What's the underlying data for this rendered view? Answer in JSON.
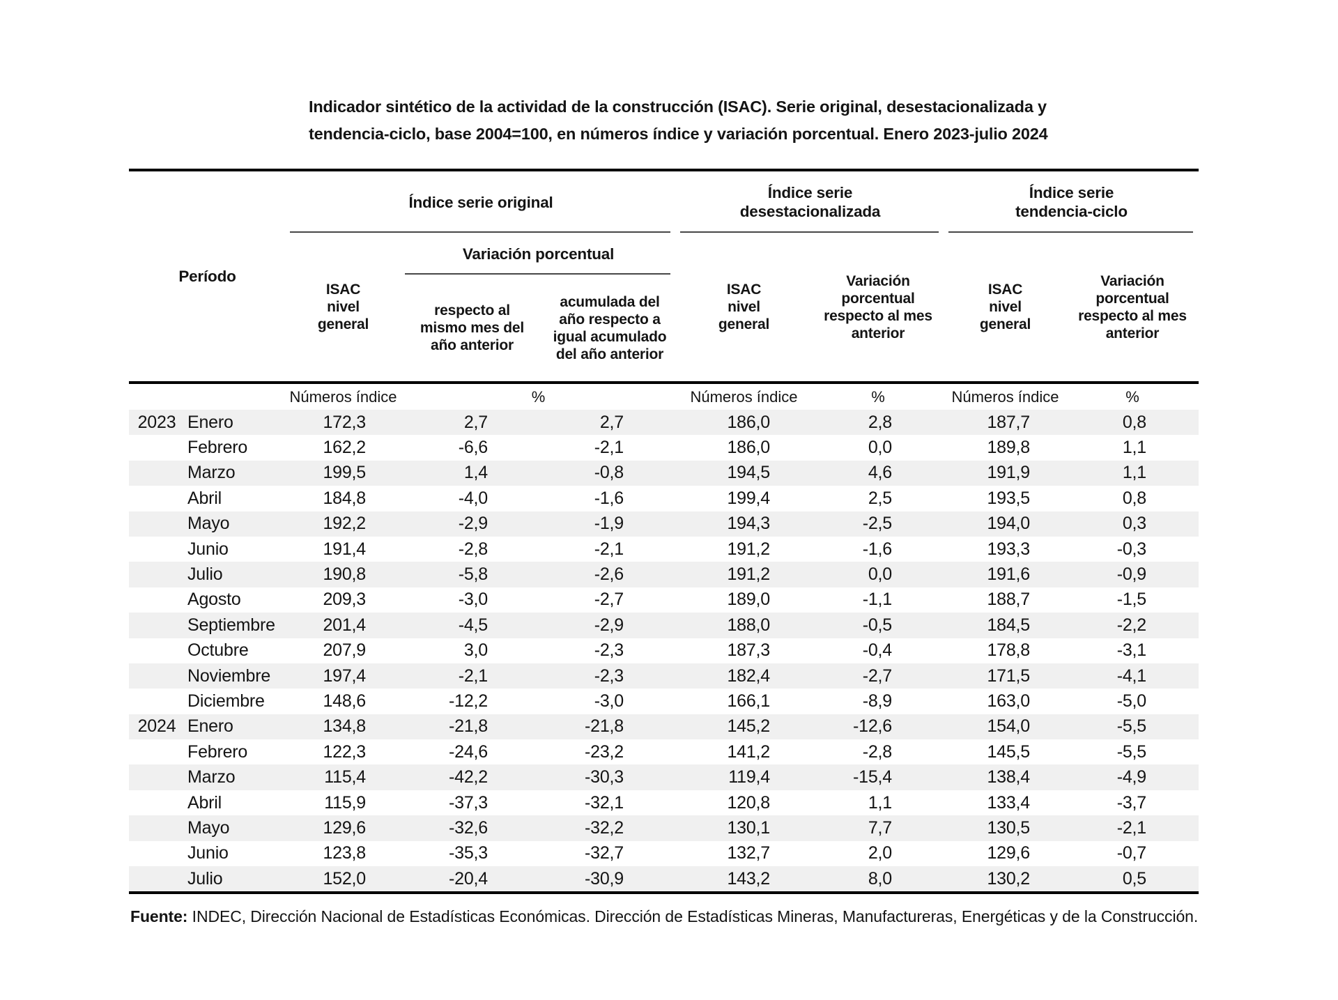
{
  "title": {
    "line1": "Indicador sintético de la actividad de la construcción (ISAC). Serie original, desestacionalizada y",
    "line2": "tendencia-ciclo, base 2004=100, en números índice y variación porcentual. Enero 2023-julio 2024"
  },
  "table": {
    "header": {
      "period": "Período",
      "group_original": "Índice serie original",
      "group_desest": "Índice serie\ndesestacionalizada",
      "group_tend": "Índice serie\ntendencia-ciclo",
      "variacion_porcentual": "Variación porcentual",
      "isac_nivel_general": "ISAC\nnivel\ngeneral",
      "respecto_mismo_mes": "respecto al\nmismo mes del\naño anterior",
      "acumulada": "acumulada del\naño respecto a\nigual acumulado\ndel año anterior",
      "variacion_mes_anterior": "Variación\nporcentual\nrespecto al mes\nanterior"
    },
    "units": {
      "index": "Números índice",
      "pct": "%"
    },
    "rows": [
      {
        "year": "2023",
        "month": "Enero",
        "values": [
          "172,3",
          "2,7",
          "2,7",
          "186,0",
          "2,8",
          "187,7",
          "0,8"
        ]
      },
      {
        "year": "",
        "month": "Febrero",
        "values": [
          "162,2",
          "-6,6",
          "-2,1",
          "186,0",
          "0,0",
          "189,8",
          "1,1"
        ]
      },
      {
        "year": "",
        "month": "Marzo",
        "values": [
          "199,5",
          "1,4",
          "-0,8",
          "194,5",
          "4,6",
          "191,9",
          "1,1"
        ]
      },
      {
        "year": "",
        "month": "Abril",
        "values": [
          "184,8",
          "-4,0",
          "-1,6",
          "199,4",
          "2,5",
          "193,5",
          "0,8"
        ]
      },
      {
        "year": "",
        "month": "Mayo",
        "values": [
          "192,2",
          "-2,9",
          "-1,9",
          "194,3",
          "-2,5",
          "194,0",
          "0,3"
        ]
      },
      {
        "year": "",
        "month": "Junio",
        "values": [
          "191,4",
          "-2,8",
          "-2,1",
          "191,2",
          "-1,6",
          "193,3",
          "-0,3"
        ]
      },
      {
        "year": "",
        "month": "Julio",
        "values": [
          "190,8",
          "-5,8",
          "-2,6",
          "191,2",
          "0,0",
          "191,6",
          "-0,9"
        ]
      },
      {
        "year": "",
        "month": "Agosto",
        "values": [
          "209,3",
          "-3,0",
          "-2,7",
          "189,0",
          "-1,1",
          "188,7",
          "-1,5"
        ]
      },
      {
        "year": "",
        "month": "Septiembre",
        "values": [
          "201,4",
          "-4,5",
          "-2,9",
          "188,0",
          "-0,5",
          "184,5",
          "-2,2"
        ]
      },
      {
        "year": "",
        "month": "Octubre",
        "values": [
          "207,9",
          "3,0",
          "-2,3",
          "187,3",
          "-0,4",
          "178,8",
          "-3,1"
        ]
      },
      {
        "year": "",
        "month": "Noviembre",
        "values": [
          "197,4",
          "-2,1",
          "-2,3",
          "182,4",
          "-2,7",
          "171,5",
          "-4,1"
        ]
      },
      {
        "year": "",
        "month": "Diciembre",
        "values": [
          "148,6",
          "-12,2",
          "-3,0",
          "166,1",
          "-8,9",
          "163,0",
          "-5,0"
        ]
      },
      {
        "year": "2024",
        "month": "Enero",
        "values": [
          "134,8",
          "-21,8",
          "-21,8",
          "145,2",
          "-12,6",
          "154,0",
          "-5,5"
        ]
      },
      {
        "year": "",
        "month": "Febrero",
        "values": [
          "122,3",
          "-24,6",
          "-23,2",
          "141,2",
          "-2,8",
          "145,5",
          "-5,5"
        ]
      },
      {
        "year": "",
        "month": "Marzo",
        "values": [
          "115,4",
          "-42,2",
          "-30,3",
          "119,4",
          "-15,4",
          "138,4",
          "-4,9"
        ]
      },
      {
        "year": "",
        "month": "Abril",
        "values": [
          "115,9",
          "-37,3",
          "-32,1",
          "120,8",
          "1,1",
          "133,4",
          "-3,7"
        ]
      },
      {
        "year": "",
        "month": "Mayo",
        "values": [
          "129,6",
          "-32,6",
          "-32,2",
          "130,1",
          "7,7",
          "130,5",
          "-2,1"
        ]
      },
      {
        "year": "",
        "month": "Junio",
        "values": [
          "123,8",
          "-35,3",
          "-32,7",
          "132,7",
          "2,0",
          "129,6",
          "-0,7"
        ]
      },
      {
        "year": "",
        "month": "Julio",
        "values": [
          "152,0",
          "-20,4",
          "-30,9",
          "143,2",
          "8,0",
          "130,2",
          "0,5"
        ]
      }
    ]
  },
  "footer": {
    "source_label": "Fuente:",
    "source_text": " INDEC, Dirección Nacional de Estadísticas Económicas. Dirección de Estadísticas Mineras, Manufactureras, Energéticas y de la Construcción."
  }
}
